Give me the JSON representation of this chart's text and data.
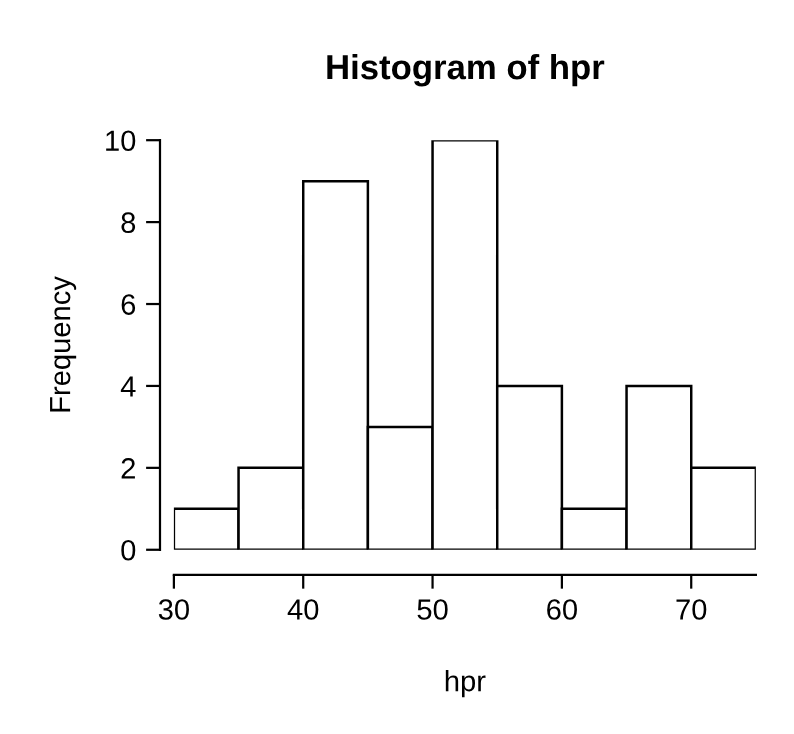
{
  "chart_data": {
    "type": "histogram",
    "title": "Histogram of hpr",
    "xlabel": "hpr",
    "ylabel": "Frequency",
    "bins": [
      30,
      35,
      40,
      45,
      50,
      55,
      60,
      65,
      70,
      75
    ],
    "values": [
      1,
      2,
      9,
      3,
      10,
      4,
      1,
      4,
      2
    ],
    "color": "#ffffff",
    "xlim": [
      30,
      75
    ],
    "ylim": [
      0,
      10
    ],
    "xticks": [
      30,
      40,
      50,
      60,
      70
    ],
    "yticks": [
      0,
      2,
      4,
      6,
      8,
      10
    ],
    "grid": false
  }
}
